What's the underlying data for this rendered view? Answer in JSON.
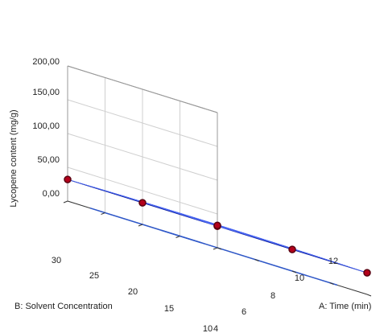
{
  "chart_data": {
    "type": "surface3d",
    "zlabel": "Lycopene content (mg/g)",
    "xlabel": "A: Time (min)",
    "ylabel": "B: Solvent Concentration",
    "z_ticks": [
      "200,00",
      "150,00",
      "100,00",
      "50,00",
      "0,00"
    ],
    "x_ticks": [
      "4",
      "6",
      "8",
      "10",
      "12"
    ],
    "y_ticks": [
      "10",
      "15",
      "20",
      "25",
      "30"
    ],
    "x_range": [
      4,
      12
    ],
    "y_range": [
      10,
      30
    ],
    "z_range": [
      0,
      200
    ],
    "surface_color": "#1f35d8",
    "design_point_color": "#b3001b",
    "grid": true,
    "design_points": [
      {
        "time": 4,
        "solvent": 30,
        "lycopene": 32,
        "below_surface": false
      },
      {
        "time": 12,
        "solvent": 10,
        "lycopene": 32,
        "below_surface": false
      },
      {
        "time": 4,
        "solvent": 10,
        "lycopene": 32,
        "below_surface": true
      },
      {
        "time": 12,
        "solvent": 30,
        "lycopene": 32,
        "below_surface": false
      },
      {
        "time": 8,
        "solvent": 20,
        "lycopene": 33,
        "below_surface": false
      },
      {
        "time": 4,
        "solvent": 20,
        "lycopene": 32,
        "below_surface": false
      },
      {
        "time": 8,
        "solvent": 10,
        "lycopene": 32,
        "below_surface": false
      }
    ]
  }
}
